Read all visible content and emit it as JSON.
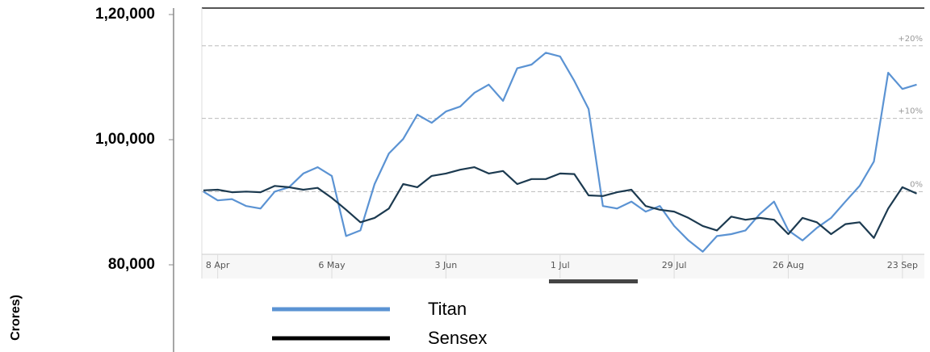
{
  "chart_data": {
    "type": "line",
    "y_label": "Crores)",
    "categories": [
      null,
      "8 Apr",
      null,
      null,
      null,
      null,
      null,
      null,
      null,
      "6 May",
      null,
      null,
      null,
      null,
      null,
      null,
      null,
      "3 Jun",
      null,
      null,
      null,
      null,
      null,
      null,
      null,
      "1 Jul",
      null,
      null,
      null,
      null,
      null,
      null,
      null,
      "29 Jul",
      null,
      null,
      null,
      null,
      null,
      null,
      null,
      "26 Aug",
      null,
      null,
      null,
      null,
      null,
      null,
      null,
      "23 Sep",
      null
    ],
    "series": [
      {
        "name": "Titan",
        "color": "#5b93d3",
        "values": [
          91700,
          90300,
          90500,
          89400,
          89000,
          91700,
          92400,
          94600,
          95600,
          94200,
          84600,
          85500,
          92900,
          97800,
          100100,
          104000,
          102700,
          104500,
          105300,
          107500,
          108800,
          106200,
          111400,
          112000,
          113900,
          113300,
          109400,
          104900,
          89400,
          89000,
          90100,
          88500,
          89400,
          86200,
          83900,
          82100,
          84600,
          84900,
          85500,
          88100,
          90100,
          85500,
          83900,
          85900,
          87500,
          90100,
          92600,
          96500,
          110700,
          108100,
          108800
        ]
      },
      {
        "name": "Sensex",
        "color": "#1c3a50",
        "values": [
          91900,
          92000,
          91600,
          91700,
          91600,
          92600,
          92400,
          92000,
          92300,
          90700,
          88800,
          86800,
          87500,
          89000,
          92900,
          92400,
          94200,
          94600,
          95200,
          95600,
          94600,
          95000,
          92900,
          93700,
          93700,
          94600,
          94500,
          91100,
          91000,
          91600,
          92000,
          89400,
          88800,
          88500,
          87500,
          86200,
          85500,
          87700,
          87200,
          87500,
          87200,
          84900,
          87500,
          86800,
          84900,
          86500,
          86800,
          84300,
          89000,
          92400,
          91400
        ]
      }
    ],
    "reference_lines": [
      {
        "label": "+20%",
        "value": 115000
      },
      {
        "label": "+10%",
        "value": 103400
      },
      {
        "label": "0%",
        "value": 91700
      }
    ],
    "ylim": [
      80000,
      120000
    ],
    "yticks": [
      {
        "value": 80000,
        "label": "80,000"
      },
      {
        "value": 100000,
        "label": "1,00,000"
      },
      {
        "value": 120000,
        "label": "1,20,000"
      }
    ],
    "legend": "bottom"
  }
}
